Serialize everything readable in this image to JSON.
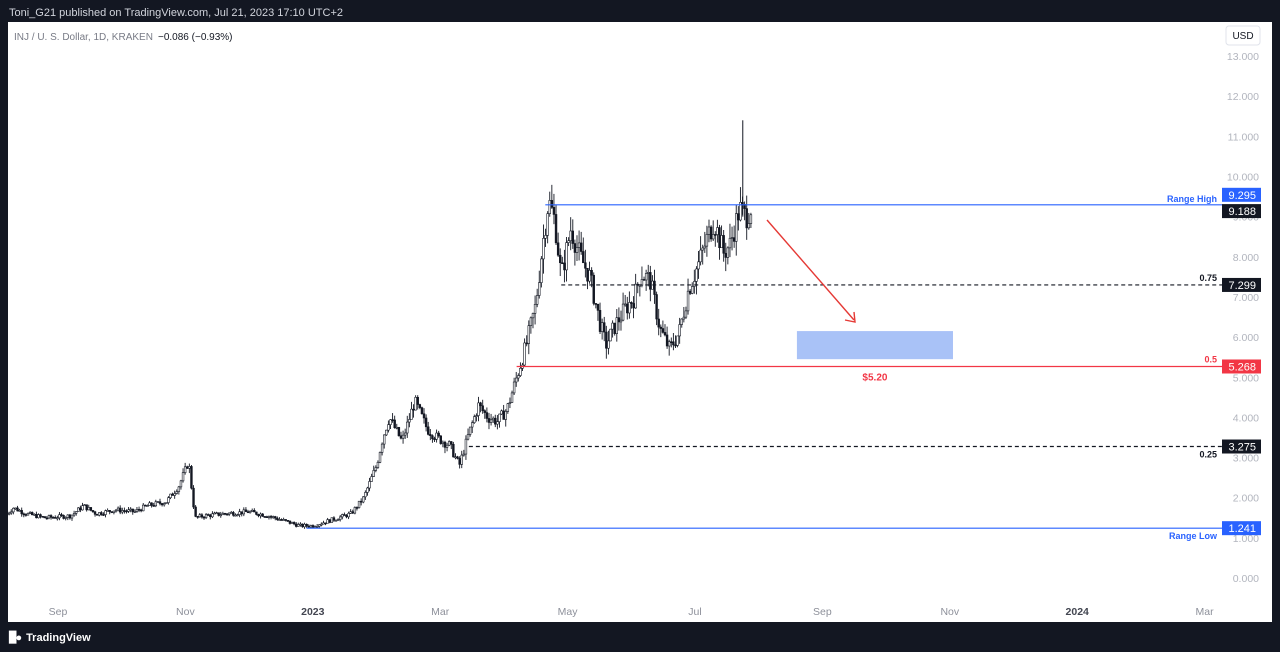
{
  "header": {
    "publish_line": "Toni_G21 published on TradingView.com, Jul 21, 2023 17:10 UTC+2"
  },
  "legend": {
    "symbol": "INJ / U. S. Dollar, 1D, KRAKEN",
    "change": "−0.086 (−0.93%)"
  },
  "currency_button": "USD",
  "footer": {
    "brand": "TradingView"
  },
  "colors": {
    "up": "#131722",
    "blue": "#2962ff",
    "red": "#f23645",
    "target_box": "#a9c2f7",
    "arrow": "#e53935"
  },
  "chart_data": {
    "type": "candlestick",
    "x_ticks": [
      {
        "label": "Sep",
        "t": 0.0,
        "bold": false
      },
      {
        "label": "Nov",
        "t": 2.0,
        "bold": false
      },
      {
        "label": "2023",
        "t": 4.0,
        "bold": true
      },
      {
        "label": "Mar",
        "t": 6.0,
        "bold": false
      },
      {
        "label": "May",
        "t": 8.0,
        "bold": false
      },
      {
        "label": "Jul",
        "t": 10.0,
        "bold": false
      },
      {
        "label": "Sep",
        "t": 12.0,
        "bold": false
      },
      {
        "label": "Nov",
        "t": 14.0,
        "bold": false
      },
      {
        "label": "2024",
        "t": 16.0,
        "bold": true
      },
      {
        "label": "Mar",
        "t": 18.0,
        "bold": false
      }
    ],
    "y_ticks": [
      "0.000",
      "1.000",
      "2.000",
      "3.000",
      "4.000",
      "5.000",
      "6.000",
      "7.000",
      "8.000",
      "9.000",
      "10.000",
      "11.000",
      "12.000",
      "13.000"
    ],
    "ylim": [
      0,
      13
    ],
    "price_path": [
      [
        -0.8,
        1.6
      ],
      [
        -0.7,
        1.75
      ],
      [
        -0.5,
        1.6
      ],
      [
        -0.2,
        1.5
      ],
      [
        0.2,
        1.55
      ],
      [
        0.4,
        1.8
      ],
      [
        0.6,
        1.6
      ],
      [
        0.9,
        1.7
      ],
      [
        1.2,
        1.65
      ],
      [
        1.4,
        1.8
      ],
      [
        1.7,
        1.9
      ],
      [
        1.9,
        2.3
      ],
      [
        2.05,
        2.9
      ],
      [
        2.15,
        1.5
      ],
      [
        2.3,
        1.55
      ],
      [
        2.6,
        1.6
      ],
      [
        3.0,
        1.65
      ],
      [
        3.3,
        1.55
      ],
      [
        3.5,
        1.45
      ],
      [
        3.8,
        1.3
      ],
      [
        4.0,
        1.3
      ],
      [
        4.3,
        1.45
      ],
      [
        4.6,
        1.6
      ],
      [
        4.8,
        2.0
      ],
      [
        5.0,
        2.8
      ],
      [
        5.1,
        3.5
      ],
      [
        5.2,
        4.0
      ],
      [
        5.4,
        3.4
      ],
      [
        5.6,
        4.4
      ],
      [
        5.8,
        3.7
      ],
      [
        5.95,
        3.5
      ],
      [
        6.15,
        3.3
      ],
      [
        6.3,
        2.8
      ],
      [
        6.45,
        3.6
      ],
      [
        6.6,
        4.3
      ],
      [
        6.75,
        4.0
      ],
      [
        6.9,
        3.9
      ],
      [
        7.05,
        4.2
      ],
      [
        7.2,
        5.0
      ],
      [
        7.35,
        5.8
      ],
      [
        7.5,
        6.8
      ],
      [
        7.6,
        8.2
      ],
      [
        7.7,
        9.4
      ],
      [
        7.8,
        8.9
      ],
      [
        7.9,
        7.5
      ],
      [
        8.05,
        8.7
      ],
      [
        8.2,
        8.0
      ],
      [
        8.35,
        7.5
      ],
      [
        8.5,
        6.4
      ],
      [
        8.6,
        5.8
      ],
      [
        8.75,
        6.3
      ],
      [
        8.9,
        6.7
      ],
      [
        9.05,
        7.0
      ],
      [
        9.15,
        7.6
      ],
      [
        9.3,
        7.4
      ],
      [
        9.45,
        6.2
      ],
      [
        9.6,
        5.7
      ],
      [
        9.75,
        6.1
      ],
      [
        9.9,
        7.2
      ],
      [
        10.05,
        7.8
      ],
      [
        10.2,
        8.5
      ],
      [
        10.3,
        8.9
      ],
      [
        10.45,
        8.1
      ],
      [
        10.55,
        8.3
      ],
      [
        10.7,
        9.2
      ],
      [
        10.8,
        9.0
      ],
      [
        10.9,
        9.3
      ]
    ],
    "spike": {
      "t": 10.75,
      "high": 11.4
    },
    "levels": [
      {
        "name": "range_high",
        "value": 9.295,
        "label": "Range High",
        "price_label": "9.295",
        "color": "#2962ff",
        "style": "solid"
      },
      {
        "name": "fib_075",
        "value": 7.299,
        "label": "0.75",
        "price_label": "7.299",
        "color": "#131722",
        "style": "dashed"
      },
      {
        "name": "fib_05",
        "value": 5.268,
        "label": "0.5",
        "price_label": "5.268",
        "color": "#f23645",
        "style": "solid"
      },
      {
        "name": "fib_025",
        "value": 3.275,
        "label": "0.25",
        "price_label": "3.275",
        "color": "#131722",
        "style": "dashed"
      },
      {
        "name": "range_low",
        "value": 1.241,
        "label": "Range Low",
        "price_label": "1.241",
        "color": "#2962ff",
        "style": "solid"
      }
    ],
    "last_price": {
      "value": 9.188,
      "label": "9.188"
    },
    "target": {
      "label": "$5.20",
      "top": 6.15,
      "bottom": 5.45,
      "t_start": 11.6,
      "t_end": 14.05
    }
  }
}
